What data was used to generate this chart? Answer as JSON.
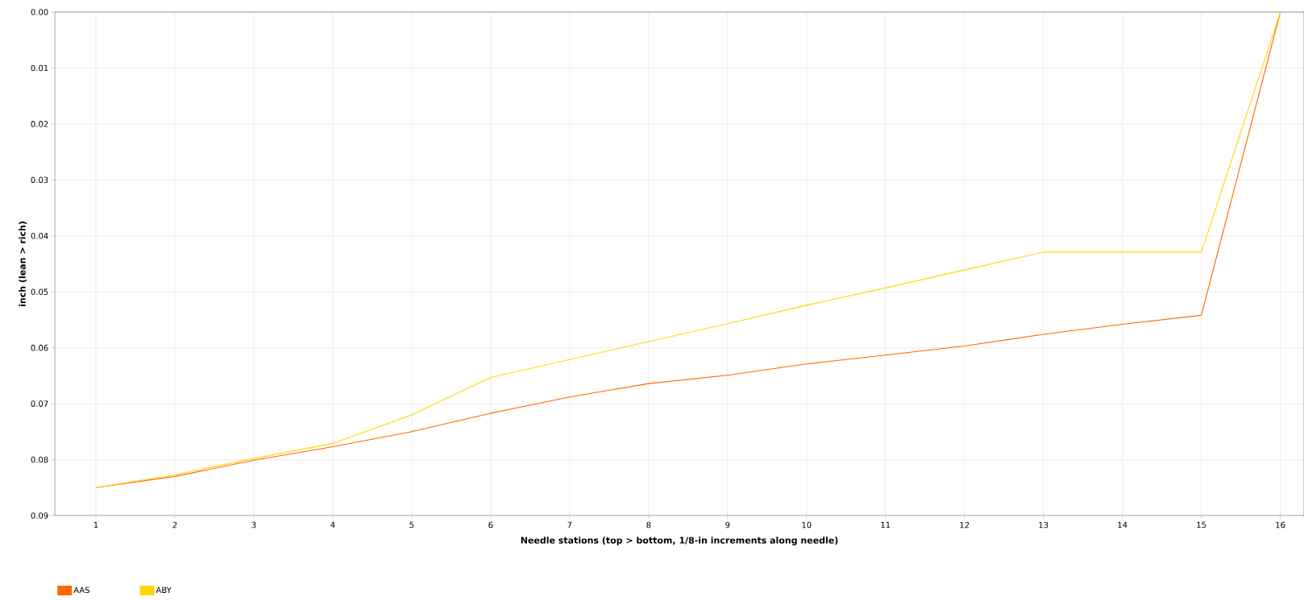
{
  "chart_data": {
    "type": "line",
    "xlabel": "Needle stations (top > bottom, 1/8-in increments along needle)",
    "ylabel": "inch (lean > rich)",
    "categories": [
      "1",
      "2",
      "3",
      "4",
      "5",
      "6",
      "7",
      "8",
      "9",
      "10",
      "11",
      "12",
      "13",
      "14",
      "15",
      "16"
    ],
    "series": [
      {
        "name": "AAS",
        "color": "#ff6600",
        "values": [
          0.085,
          0.083,
          0.0801,
          0.0777,
          0.075,
          0.0717,
          0.0688,
          0.0664,
          0.0649,
          0.0629,
          0.0613,
          0.0597,
          0.0576,
          0.0558,
          0.0542,
          0
        ]
      },
      {
        "name": "ABY",
        "color": "#ffd700",
        "values": [
          0.085,
          0.0827,
          0.0798,
          0.0771,
          0.072,
          0.0653,
          0.0621,
          0.0589,
          0.0557,
          0.0524,
          0.0493,
          0.0461,
          0.0429,
          0.0429,
          0.0429,
          0
        ]
      }
    ],
    "ylim": [
      0.09,
      0
    ],
    "yticks": [
      {
        "value": 0,
        "label": "0.00"
      },
      {
        "value": 0.01,
        "label": "0.01"
      },
      {
        "value": 0.02,
        "label": "0.02"
      },
      {
        "value": 0.03,
        "label": "0.03"
      },
      {
        "value": 0.04,
        "label": "0.04"
      },
      {
        "value": 0.05,
        "label": "0.05"
      },
      {
        "value": 0.06,
        "label": "0.06"
      },
      {
        "value": 0.07,
        "label": "0.07"
      },
      {
        "value": 0.08,
        "label": "0.08"
      },
      {
        "value": 0.09,
        "label": "0.09"
      }
    ],
    "grid": true,
    "legend": "bottom left",
    "line_style": "solid",
    "marker": "none"
  }
}
